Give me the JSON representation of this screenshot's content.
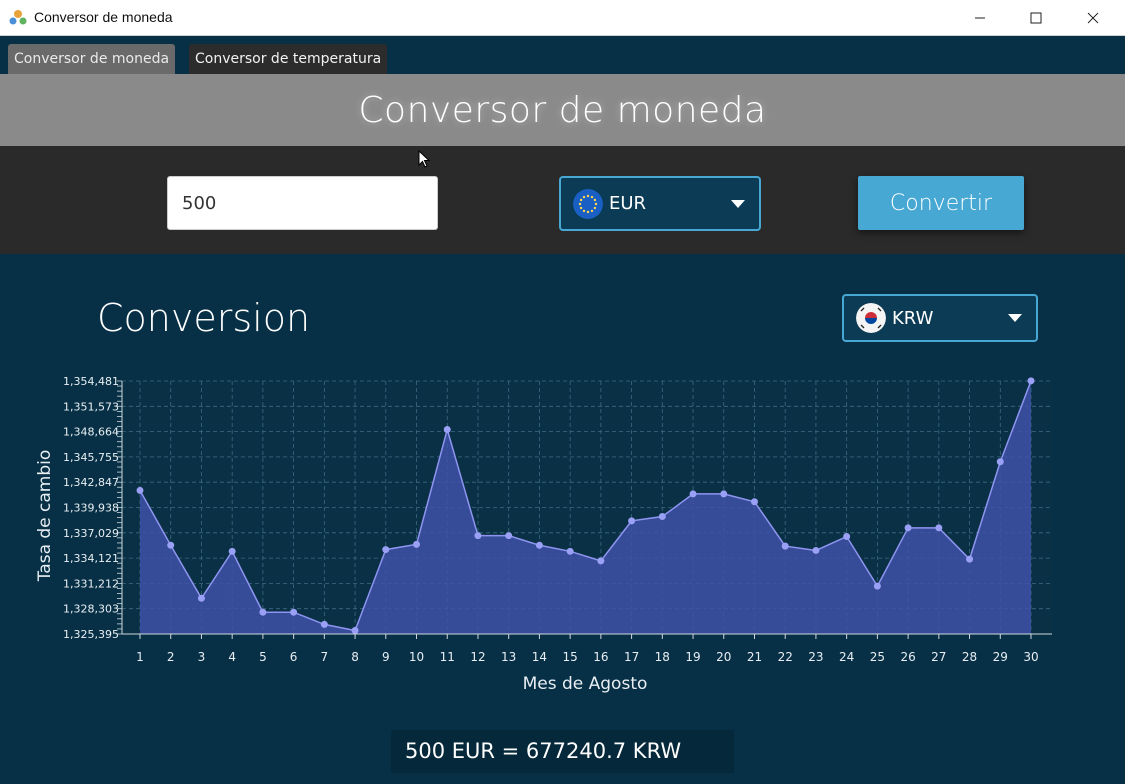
{
  "window": {
    "title": "Conversor de moneda",
    "controls": [
      "minimize",
      "maximize",
      "close"
    ]
  },
  "tabs": [
    {
      "label": "Conversor de moneda",
      "active": true
    },
    {
      "label": "Conversor de temperatura",
      "active": false
    }
  ],
  "header": {
    "title": "Conversor de moneda"
  },
  "form": {
    "amount_value": "500",
    "source_currency": {
      "code": "EUR",
      "icon": "eu-flag-icon"
    },
    "convert_label": "Convertir"
  },
  "section": {
    "title": "Conversion",
    "target_currency": {
      "code": "KRW",
      "icon": "south-korea-flag-icon"
    }
  },
  "chart_data": {
    "type": "area",
    "title": "",
    "xlabel": "Mes de Agosto",
    "ylabel": "Tasa de cambio",
    "x": [
      1,
      2,
      3,
      4,
      5,
      6,
      7,
      8,
      9,
      10,
      11,
      12,
      13,
      14,
      15,
      16,
      17,
      18,
      19,
      20,
      21,
      22,
      23,
      24,
      25,
      26,
      27,
      28,
      29,
      30
    ],
    "series": [
      {
        "values": [
          1341.9,
          1335.6,
          1329.5,
          1334.9,
          1327.9,
          1327.9,
          1326.5,
          1325.8,
          1335.1,
          1335.7,
          1348.9,
          1336.7,
          1336.7,
          1335.6,
          1334.9,
          1333.8,
          1338.4,
          1338.9,
          1341.5,
          1341.5,
          1340.6,
          1335.5,
          1335.0,
          1336.6,
          1330.9,
          1337.6,
          1337.6,
          1334.0,
          1345.2,
          1354.5
        ]
      }
    ],
    "yticks": [
      "1,325,395",
      "1,328,303",
      "1,331,212",
      "1,334,121",
      "1,337,029",
      "1,339,938",
      "1,342,847",
      "1,345,755",
      "1,348,664",
      "1,351,573",
      "1,354,481"
    ],
    "ylim": [
      1325.395,
      1354.481
    ],
    "grid": true,
    "colors": {
      "fill": "#3f51a8",
      "line": "#8e95f0",
      "point": "#9aa0f5"
    }
  },
  "result": {
    "text": "500 EUR = 677240.7 KRW"
  }
}
